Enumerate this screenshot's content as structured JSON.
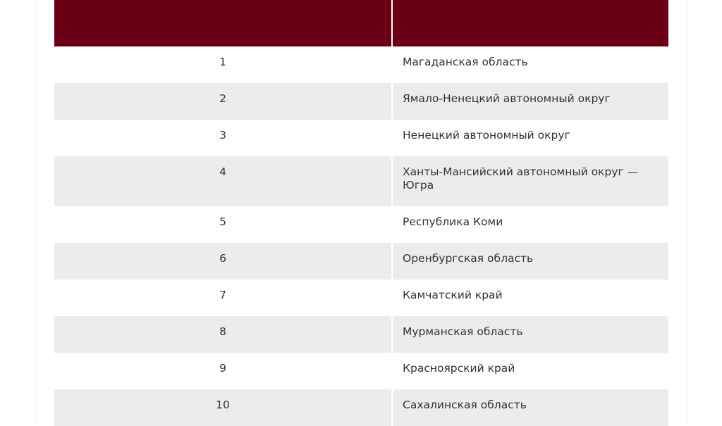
{
  "table": {
    "header": [
      "",
      ""
    ],
    "header_color": "#6a0016",
    "stripe_color": "#ececec",
    "rows": [
      {
        "num": "1",
        "region": "Магаданская область"
      },
      {
        "num": "2",
        "region": "Ямало-Ненецкий автономный округ"
      },
      {
        "num": "3",
        "region": "Ненецкий автономный округ"
      },
      {
        "num": "4",
        "region": "Ханты-Мансийский автономный округ — Югра"
      },
      {
        "num": "5",
        "region": "Республика Коми"
      },
      {
        "num": "6",
        "region": "Оренбургская область"
      },
      {
        "num": "7",
        "region": "Камчатский край"
      },
      {
        "num": "8",
        "region": "Мурманская область"
      },
      {
        "num": "9",
        "region": "Красноярский край"
      },
      {
        "num": "10",
        "region": "Сахалинская область"
      }
    ]
  }
}
